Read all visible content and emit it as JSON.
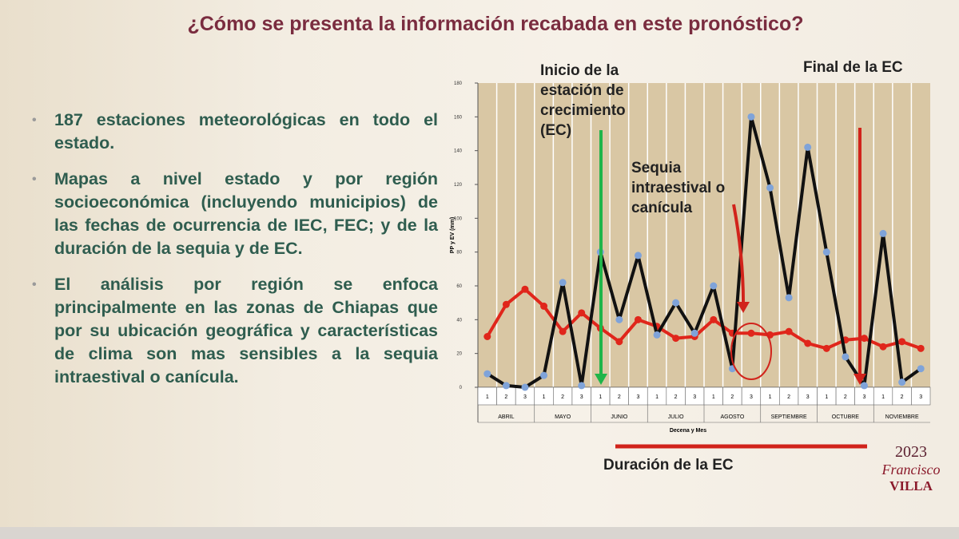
{
  "slide": {
    "title": "¿Cómo se presenta la información recabada en este pronóstico?",
    "bullets": [
      "187 estaciones meteorológicas en todo el estado.",
      "Mapas a nivel estado y por región socioeconómica (incluyendo municipios) de las fechas de ocurrencia de IEC, FEC; y de la duración de la sequia y de EC.",
      "El análisis por región se enfoca principalmente en las zonas de Chiapas que por su ubicación geográfica y características de clima son mas sensibles a la sequia intraestival o canícula."
    ],
    "logo": {
      "year": "2023",
      "name": "Francisco",
      "surname": "VILLA"
    }
  },
  "chart_data": {
    "type": "line",
    "y_label": "PP y EV (mm)",
    "x_label": "Decena y Mes",
    "categories": [
      "1",
      "2",
      "3",
      "1",
      "2",
      "3",
      "1",
      "2",
      "3",
      "1",
      "2",
      "3",
      "1",
      "2",
      "3",
      "1",
      "2",
      "3",
      "1",
      "2",
      "3",
      "1",
      "2",
      "3"
    ],
    "groups": [
      "ABRIL",
      "MAYO",
      "JUNIO",
      "JULIO",
      "AGOSTO",
      "SEPTIEMBRE",
      "OCTUBRE",
      "NOVIEMBRE"
    ],
    "series": [
      {
        "color": "#111111",
        "marker_color": "#7fa3d9",
        "values": [
          8,
          1,
          0,
          7,
          62,
          1,
          80,
          40,
          78,
          31,
          50,
          32,
          60,
          11,
          160,
          118,
          53,
          142,
          80,
          18,
          1,
          91,
          3,
          11
        ]
      },
      {
        "color": "#e0261b",
        "marker_color": "#e0261b",
        "values": [
          30,
          49,
          58,
          48,
          33,
          44,
          35,
          27,
          40,
          36,
          29,
          30,
          40,
          32,
          32,
          31,
          33,
          26,
          23,
          28,
          29,
          24,
          27,
          23
        ]
      }
    ],
    "ylim": [
      0,
      180
    ],
    "yticks": [
      0,
      20,
      40,
      60,
      80,
      100,
      120,
      140,
      160,
      180
    ],
    "annotations": {
      "start": "Inicio de la estación de crecimiento (EC)",
      "end": "Final de la EC",
      "drought": "Sequia intraestival o canícula",
      "duration": "Duración de la EC"
    }
  }
}
